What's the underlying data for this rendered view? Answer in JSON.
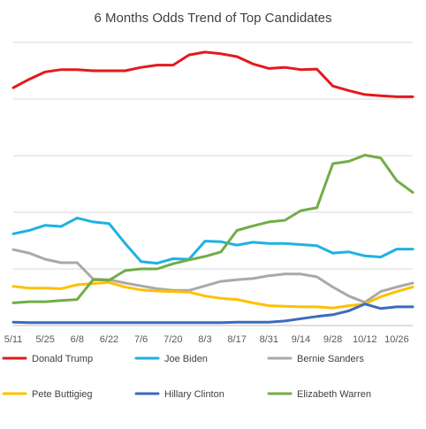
{
  "chart_data": {
    "type": "line",
    "title": "6 Months Odds Trend of Top Candidates",
    "xlabel": "",
    "ylabel": "",
    "ylim": [
      0,
      50
    ],
    "grid": true,
    "legend_position": "bottom",
    "x_tick_labels": [
      "5/11",
      "5/25",
      "6/8",
      "6/22",
      "7/6",
      "7/20",
      "8/3",
      "8/17",
      "8/31",
      "9/14",
      "9/28",
      "10/12",
      "10/26"
    ],
    "x_count": 26,
    "series": [
      {
        "name": "Donald Trump",
        "color": "#e31a1c",
        "values": [
          42.0,
          43.5,
          44.8,
          45.2,
          45.2,
          45.0,
          45.0,
          45.0,
          45.6,
          46.0,
          46.0,
          47.8,
          48.3,
          48.0,
          47.5,
          46.2,
          45.4,
          45.6,
          45.2,
          45.3,
          42.3,
          41.5,
          40.8,
          40.6,
          40.4,
          40.4
        ]
      },
      {
        "name": "Joe Biden",
        "color": "#1fb2e0",
        "values": [
          16.2,
          16.8,
          17.7,
          17.5,
          19.0,
          18.3,
          18.0,
          14.5,
          11.3,
          11.0,
          11.8,
          11.7,
          14.9,
          14.8,
          14.2,
          14.7,
          14.5,
          14.5,
          14.3,
          14.1,
          12.8,
          13.0,
          12.3,
          12.1,
          13.5,
          13.5
        ]
      },
      {
        "name": "Bernie Sanders",
        "color": "#a9a9a9",
        "values": [
          13.4,
          12.8,
          11.7,
          11.1,
          11.1,
          8.2,
          8.1,
          7.5,
          7.0,
          6.5,
          6.2,
          6.2,
          7.0,
          7.8,
          8.1,
          8.3,
          8.8,
          9.1,
          9.1,
          8.6,
          6.8,
          5.2,
          4.1,
          6.0,
          6.8,
          7.5
        ]
      },
      {
        "name": "Pete Buttigieg",
        "color": "#ffc000",
        "values": [
          6.9,
          6.6,
          6.6,
          6.5,
          7.2,
          7.4,
          7.6,
          6.8,
          6.3,
          6.1,
          6.0,
          5.9,
          5.2,
          4.8,
          4.6,
          4.0,
          3.5,
          3.4,
          3.3,
          3.3,
          3.1,
          3.5,
          3.8,
          5.1,
          6.0,
          6.8
        ]
      },
      {
        "name": "Hillary Clinton",
        "color": "#3a6cbf",
        "values": [
          0.6,
          0.5,
          0.5,
          0.5,
          0.5,
          0.5,
          0.5,
          0.5,
          0.5,
          0.5,
          0.5,
          0.5,
          0.5,
          0.5,
          0.6,
          0.6,
          0.6,
          0.8,
          1.2,
          1.6,
          1.9,
          2.6,
          3.8,
          3.0,
          3.3,
          3.3
        ]
      },
      {
        "name": "Elizabeth Warren",
        "color": "#70ad47",
        "values": [
          4.0,
          4.2,
          4.2,
          4.4,
          4.6,
          8.1,
          8.0,
          9.7,
          10.0,
          10.0,
          10.9,
          11.6,
          12.2,
          13.0,
          16.8,
          17.6,
          18.3,
          18.6,
          20.3,
          20.8,
          28.6,
          29.0,
          30.1,
          29.6,
          25.6,
          23.5
        ]
      }
    ]
  }
}
